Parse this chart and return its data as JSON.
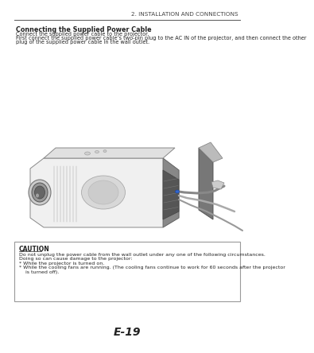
{
  "page_number": "E-19",
  "header_text": "2. INSTALLATION AND CONNECTIONS",
  "section_title": "Connecting the Supplied Power Cable",
  "body_text_1": "Connect the supplied power cable to the projector.",
  "body_text_2": "First connect the supplied power cable’s two-pin plug to the AC IN of the projector, and then connect the other",
  "body_text_3": "plug of the supplied power cable in the wall outlet.",
  "caution_title": "CAUTION",
  "caution_text_1": "Do not unplug the power cable from the wall outlet under any one of the following circumstances.",
  "caution_text_2": "Doing so can cause damage to the projector:",
  "caution_bullet_1": "While the projector is turned on.",
  "caution_bullet_2": "While the cooling fans are running. (The cooling fans continue to work for 60 seconds after the projector",
  "caution_bullet_2b": "is turned off).",
  "bg_color": "#ffffff",
  "text_color": "#222222",
  "header_color": "#444444",
  "line_color": "#888888"
}
